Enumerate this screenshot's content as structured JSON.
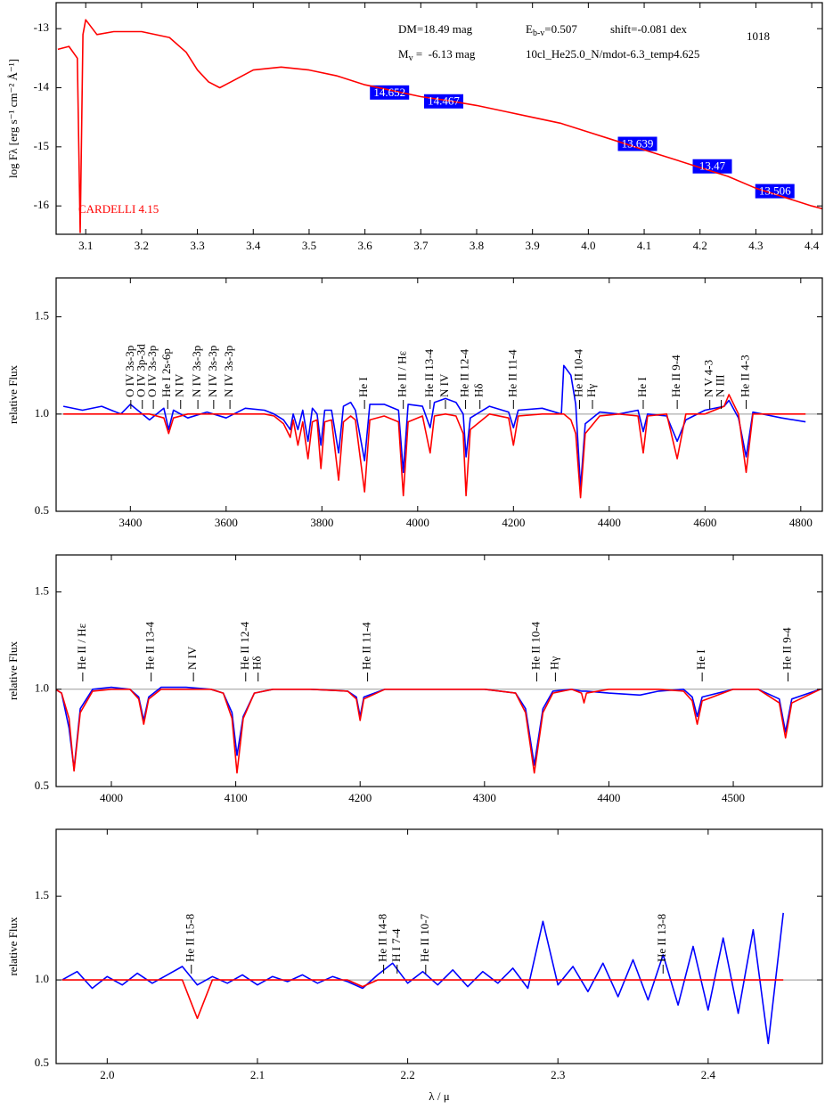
{
  "chart_data": [
    {
      "type": "line",
      "ylabel": "log Fλ [erg s⁻¹ cm⁻² Å⁻¹]",
      "xlim": [
        3.047,
        4.419
      ],
      "xticks": [
        3.1,
        3.2,
        3.3,
        3.4,
        3.5,
        3.6,
        3.7,
        3.8,
        3.9,
        {
          "value": 4,
          "label": "4.0"
        },
        4.1,
        4.2,
        4.3,
        4.4
      ],
      "ylim": [
        -16.48,
        -12.56
      ],
      "yticks": [
        -13,
        -14,
        -15,
        -16
      ],
      "x": [
        3.05,
        3.07,
        3.085,
        3.09,
        3.095,
        3.1,
        3.12,
        3.15,
        3.2,
        3.25,
        3.28,
        3.3,
        3.32,
        3.34,
        3.36,
        3.4,
        3.45,
        3.5,
        3.55,
        3.6,
        3.65,
        3.7,
        3.75,
        3.8,
        3.85,
        3.9,
        3.95,
        4.0,
        4.05,
        4.1,
        4.15,
        4.2,
        4.25,
        4.3,
        4.35,
        4.4,
        4.42
      ],
      "series": [
        {
          "color": "#ff0000",
          "values": [
            -13.35,
            -13.3,
            -13.5,
            -16.45,
            -13.1,
            -12.85,
            -13.1,
            -13.05,
            -13.05,
            -13.15,
            -13.4,
            -13.7,
            -13.9,
            -14.0,
            -13.9,
            -13.7,
            -13.65,
            -13.7,
            -13.8,
            -13.95,
            -14.05,
            -14.15,
            -14.22,
            -14.3,
            -14.4,
            -14.5,
            -14.6,
            -14.75,
            -14.9,
            -15.05,
            -15.2,
            -15.35,
            -15.5,
            -15.7,
            -15.85,
            -16.0,
            -16.05
          ]
        }
      ],
      "photometry": {
        "color": "#0000ff",
        "x": [
          3.644,
          3.741,
          4.088,
          4.222,
          4.334
        ],
        "y": [
          -14.08,
          -14.23,
          -14.95,
          -15.33,
          -15.75
        ],
        "mags": [
          14.652,
          14.467,
          13.639,
          13.47,
          13.506
        ]
      },
      "annotations": {
        "dm": "DM=18.49 mag",
        "ebv": {
          "symbol": "E",
          "subscript": "b-v",
          "value": "=0.507"
        },
        "shift": "shift=-0.081 dex",
        "mv": {
          "symbol": "M",
          "subscript": "v",
          "value": " =  -6.13 mag"
        },
        "model": "10cl_He25.0_N/mdot-6.3_temp4.625",
        "id": "1018",
        "reddening": "CARDELLI 4.15"
      }
    },
    {
      "type": "line",
      "ylabel": "relative Flux",
      "xlim": [
        3245,
        4845
      ],
      "xticks": [
        3400,
        3600,
        3800,
        4000,
        4200,
        4400,
        4600,
        4800
      ],
      "ylim": [
        0.5,
        1.7
      ],
      "yticks": [
        0.5,
        {
          "value": 1,
          "label": "1.0"
        },
        1.5
      ],
      "hline": 1,
      "x": [
        3260,
        3300,
        3340,
        3380,
        3400,
        3440,
        3470,
        3480,
        3490,
        3520,
        3560,
        3600,
        3640,
        3680,
        3700,
        3720,
        3734,
        3740,
        3750,
        3760,
        3771,
        3780,
        3790,
        3798,
        3806,
        3820,
        3835,
        3845,
        3860,
        3870,
        3889,
        3900,
        3930,
        3960,
        3970,
        3980,
        4010,
        4026,
        4035,
        4058,
        4080,
        4095,
        4101,
        4110,
        4150,
        4190,
        4200,
        4210,
        4260,
        4300,
        4305,
        4320,
        4330,
        4340,
        4350,
        4380,
        4420,
        4460,
        4471,
        4480,
        4520,
        4542,
        4560,
        4600,
        4640,
        4650,
        4670,
        4686,
        4700,
        4760,
        4810
      ],
      "series": [
        {
          "color": "#0000ff",
          "values": [
            1.04,
            1.02,
            1.04,
            1.0,
            1.05,
            0.97,
            1.03,
            0.92,
            1.02,
            0.98,
            1.01,
            0.98,
            1.03,
            1.02,
            1.0,
            0.97,
            0.92,
            1.0,
            0.92,
            1.02,
            0.86,
            1.03,
            1.0,
            0.84,
            1.02,
            1.02,
            0.8,
            1.04,
            1.06,
            1.02,
            0.76,
            1.05,
            1.05,
            1.02,
            0.7,
            1.05,
            1.04,
            0.93,
            1.06,
            1.08,
            1.06,
            1.0,
            0.78,
            0.98,
            1.04,
            1.01,
            0.93,
            1.02,
            1.03,
            1.0,
            1.25,
            1.2,
            1.05,
            0.62,
            0.95,
            1.01,
            1.0,
            1.02,
            0.91,
            1.0,
            0.99,
            0.86,
            0.97,
            1.02,
            1.04,
            1.07,
            0.98,
            0.78,
            1.01,
            0.98,
            0.96
          ]
        },
        {
          "color": "#ff0000",
          "values": [
            1.0,
            1.0,
            1.0,
            1.0,
            1.0,
            1.0,
            0.98,
            0.9,
            0.98,
            1.0,
            1.0,
            1.0,
            1.0,
            1.0,
            0.99,
            0.95,
            0.88,
            0.97,
            0.84,
            0.96,
            0.77,
            0.96,
            0.97,
            0.72,
            0.96,
            0.97,
            0.66,
            0.96,
            0.99,
            0.97,
            0.6,
            0.97,
            0.99,
            0.96,
            0.58,
            0.96,
            0.99,
            0.8,
            0.99,
            1.0,
            0.99,
            0.9,
            0.58,
            0.92,
            1.0,
            0.98,
            0.84,
            0.99,
            1.0,
            1.0,
            1.0,
            0.97,
            0.9,
            0.57,
            0.9,
            0.99,
            1.0,
            0.99,
            0.8,
            0.99,
            1.0,
            0.77,
            1.0,
            1.0,
            1.04,
            1.1,
            1.0,
            0.7,
            1.0,
            1.0,
            1.0
          ]
        }
      ],
      "line_ids": {
        "x": [
          3401,
          3425,
          3448,
          3478,
          3505,
          3541,
          3574,
          3608,
          3889,
          3970,
          4026,
          4058,
          4100,
          4130,
          4200,
          4338,
          4365,
          4471,
          4542,
          4610,
          4634,
          4686
        ],
        "labels": [
          "O IV 3s-3p",
          "O IV 3p-3d",
          "O IV 3s-3p",
          "He I 2s-6p",
          "N IV",
          "N IV 3s-3p",
          "N IV 3s-3p",
          "N IV 3s-3p",
          "He I",
          "He II / Hε",
          "He II 13-4",
          "N IV",
          "He II 12-4",
          "Hδ",
          "He II 11-4",
          "He II 10-4",
          "Hγ",
          "He I",
          "He II 9-4",
          "N V 4-3",
          "N III",
          "He II 4-3"
        ]
      }
    },
    {
      "type": "line",
      "ylabel": "relative Flux",
      "xlim": [
        3955.6,
        4571.6
      ],
      "xticks": [
        4000,
        4100,
        4200,
        4300,
        4400,
        4500
      ],
      "ylim": [
        0.5,
        1.69
      ],
      "yticks": [
        0.5,
        {
          "value": 1,
          "label": "1.0"
        },
        1.5
      ],
      "hline": 1,
      "x": [
        3955,
        3960,
        3966,
        3970,
        3975,
        3985,
        4000,
        4015,
        4022,
        4026,
        4030,
        4040,
        4060,
        4080,
        4090,
        4097,
        4101,
        4106,
        4115,
        4130,
        4160,
        4190,
        4197,
        4200,
        4203,
        4220,
        4250,
        4300,
        4325,
        4333,
        4340,
        4347,
        4355,
        4370,
        4378,
        4380,
        4382,
        4400,
        4425,
        4440,
        4460,
        4467,
        4471,
        4475,
        4500,
        4520,
        4537,
        4542,
        4547,
        4570
      ],
      "series": [
        {
          "color": "#0000ff",
          "values": [
            1.0,
            0.98,
            0.8,
            0.59,
            0.9,
            1.0,
            1.01,
            1.0,
            0.96,
            0.84,
            0.96,
            1.01,
            1.01,
            1.0,
            0.98,
            0.88,
            0.66,
            0.86,
            0.98,
            1.0,
            1.0,
            0.99,
            0.96,
            0.86,
            0.96,
            1.0,
            1.0,
            1.0,
            0.98,
            0.9,
            0.61,
            0.9,
            0.99,
            1.0,
            0.99,
            0.99,
            0.99,
            0.98,
            0.97,
            0.99,
            1.0,
            0.96,
            0.86,
            0.96,
            1.0,
            1.0,
            0.95,
            0.78,
            0.95,
            1.0
          ]
        },
        {
          "color": "#ff0000",
          "values": [
            1.0,
            0.98,
            0.85,
            0.58,
            0.88,
            0.99,
            1.0,
            1.0,
            0.95,
            0.82,
            0.95,
            1.0,
            1.0,
            1.0,
            0.98,
            0.85,
            0.57,
            0.85,
            0.98,
            1.0,
            1.0,
            0.99,
            0.95,
            0.84,
            0.95,
            1.0,
            1.0,
            1.0,
            0.98,
            0.88,
            0.57,
            0.88,
            0.98,
            1.0,
            0.98,
            0.93,
            0.98,
            1.0,
            1.0,
            1.0,
            0.99,
            0.94,
            0.82,
            0.94,
            1.0,
            1.0,
            0.93,
            0.75,
            0.93,
            1.0
          ]
        }
      ],
      "line_ids": {
        "x": [
          3977,
          4032,
          4066,
          4108,
          4118,
          4206,
          4342,
          4357,
          4475,
          4544
        ],
        "labels": [
          "He II / Hε",
          "He II 13-4",
          "N IV",
          "He II 12-4",
          "Hδ",
          "He II 11-4",
          "He II 10-4",
          "Hγ",
          "He I",
          "He II 9-4"
        ]
      }
    },
    {
      "type": "line",
      "ylabel": "relative Flux",
      "xlabel": "λ / μ",
      "xlim": [
        1.966,
        2.476
      ],
      "xticks": [
        {
          "value": 2,
          "label": "2.0"
        },
        2.1,
        2.2,
        2.3,
        2.4
      ],
      "ylim": [
        0.5,
        1.9
      ],
      "yticks": [
        0.5,
        {
          "value": 1,
          "label": "1.0"
        },
        1.5
      ],
      "hline": 1,
      "x": [
        1.97,
        1.98,
        1.99,
        2.0,
        2.01,
        2.02,
        2.03,
        2.04,
        2.05,
        2.06,
        2.07,
        2.08,
        2.09,
        2.1,
        2.11,
        2.12,
        2.13,
        2.14,
        2.15,
        2.16,
        2.17,
        2.18,
        2.19,
        2.2,
        2.21,
        2.22,
        2.23,
        2.24,
        2.25,
        2.26,
        2.27,
        2.28,
        2.29,
        2.3,
        2.31,
        2.32,
        2.33,
        2.34,
        2.35,
        2.36,
        2.37,
        2.38,
        2.39,
        2.4,
        2.41,
        2.42,
        2.43,
        2.44,
        2.45
      ],
      "series": [
        {
          "color": "#0000ff",
          "values": [
            1.0,
            1.05,
            0.95,
            1.02,
            0.97,
            1.04,
            0.98,
            1.03,
            1.08,
            0.97,
            1.02,
            0.98,
            1.03,
            0.97,
            1.02,
            0.99,
            1.03,
            0.98,
            1.02,
            0.99,
            0.95,
            1.03,
            1.1,
            0.98,
            1.05,
            0.97,
            1.06,
            0.96,
            1.05,
            0.98,
            1.07,
            0.95,
            1.35,
            0.97,
            1.08,
            0.93,
            1.1,
            0.9,
            1.12,
            0.88,
            1.15,
            0.85,
            1.2,
            0.82,
            1.25,
            0.8,
            1.3,
            0.62,
            1.4
          ]
        },
        {
          "color": "#ff0000",
          "values": [
            1.0,
            1.0,
            1.0,
            1.0,
            1.0,
            1.0,
            1.0,
            1.0,
            1.0,
            0.77,
            1.0,
            1.0,
            1.0,
            1.0,
            1.0,
            1.0,
            1.0,
            1.0,
            1.0,
            1.0,
            0.96,
            1.0,
            1.0,
            1.0,
            1.0,
            1.0,
            1.0,
            1.0,
            1.0,
            1.0,
            1.0,
            1.0,
            1.0,
            1.0,
            1.0,
            1.0,
            1.0,
            1.0,
            1.0,
            1.0,
            1.0,
            1.0,
            1.0,
            1.0,
            1.0,
            1.0,
            1.0,
            1.0,
            1.0
          ]
        }
      ],
      "line_ids": {
        "x": [
          2.056,
          2.184,
          2.193,
          2.212,
          2.37
        ],
        "labels": [
          "He II 15-8",
          "He II 14-8",
          "H I 7-4",
          "He II 10-7",
          "He II 13-8"
        ]
      }
    }
  ]
}
